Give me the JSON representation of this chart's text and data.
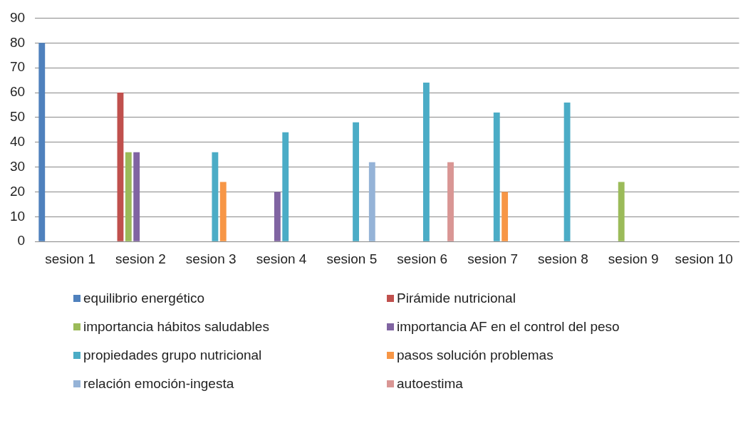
{
  "chart_data": {
    "type": "bar",
    "categories": [
      "sesion 1",
      "sesion 2",
      "sesion 3",
      "sesion 4",
      "sesion 5",
      "sesion 6",
      "sesion 7",
      "sesion 8",
      "sesion 9",
      "sesion 10"
    ],
    "series": [
      {
        "name": "equilibrio energético",
        "color": "#4f81bd",
        "values": [
          80,
          null,
          null,
          null,
          null,
          null,
          null,
          null,
          null,
          null
        ]
      },
      {
        "name": "Pirámide nutricional",
        "color": "#c0504d",
        "values": [
          null,
          60,
          null,
          null,
          null,
          null,
          null,
          null,
          null,
          null
        ]
      },
      {
        "name": "importancia hábitos saludables",
        "color": "#9bbb59",
        "values": [
          null,
          36,
          null,
          null,
          null,
          null,
          null,
          null,
          24,
          null
        ]
      },
      {
        "name": "importancia AF en el control del peso",
        "color": "#8064a2",
        "values": [
          null,
          36,
          null,
          20,
          null,
          null,
          null,
          null,
          null,
          null
        ]
      },
      {
        "name": "propiedades grupo nutricional",
        "color": "#4bacc6",
        "values": [
          null,
          null,
          36,
          44,
          48,
          64,
          52,
          56,
          null,
          null
        ]
      },
      {
        "name": "pasos solución problemas",
        "color": "#f79646",
        "values": [
          null,
          null,
          24,
          null,
          null,
          null,
          20,
          null,
          null,
          null
        ]
      },
      {
        "name": "relación emoción-ingesta",
        "color": "#95b3d7",
        "values": [
          null,
          null,
          null,
          null,
          32,
          null,
          null,
          null,
          null,
          null
        ]
      },
      {
        "name": "autoestima",
        "color": "#d99694",
        "values": [
          null,
          null,
          null,
          null,
          null,
          32,
          null,
          null,
          null,
          null
        ]
      }
    ],
    "ylim": [
      0,
      90
    ],
    "yticks": [
      0,
      10,
      20,
      30,
      40,
      50,
      60,
      70,
      80,
      90
    ],
    "grid": "y",
    "legend": "bottom"
  }
}
